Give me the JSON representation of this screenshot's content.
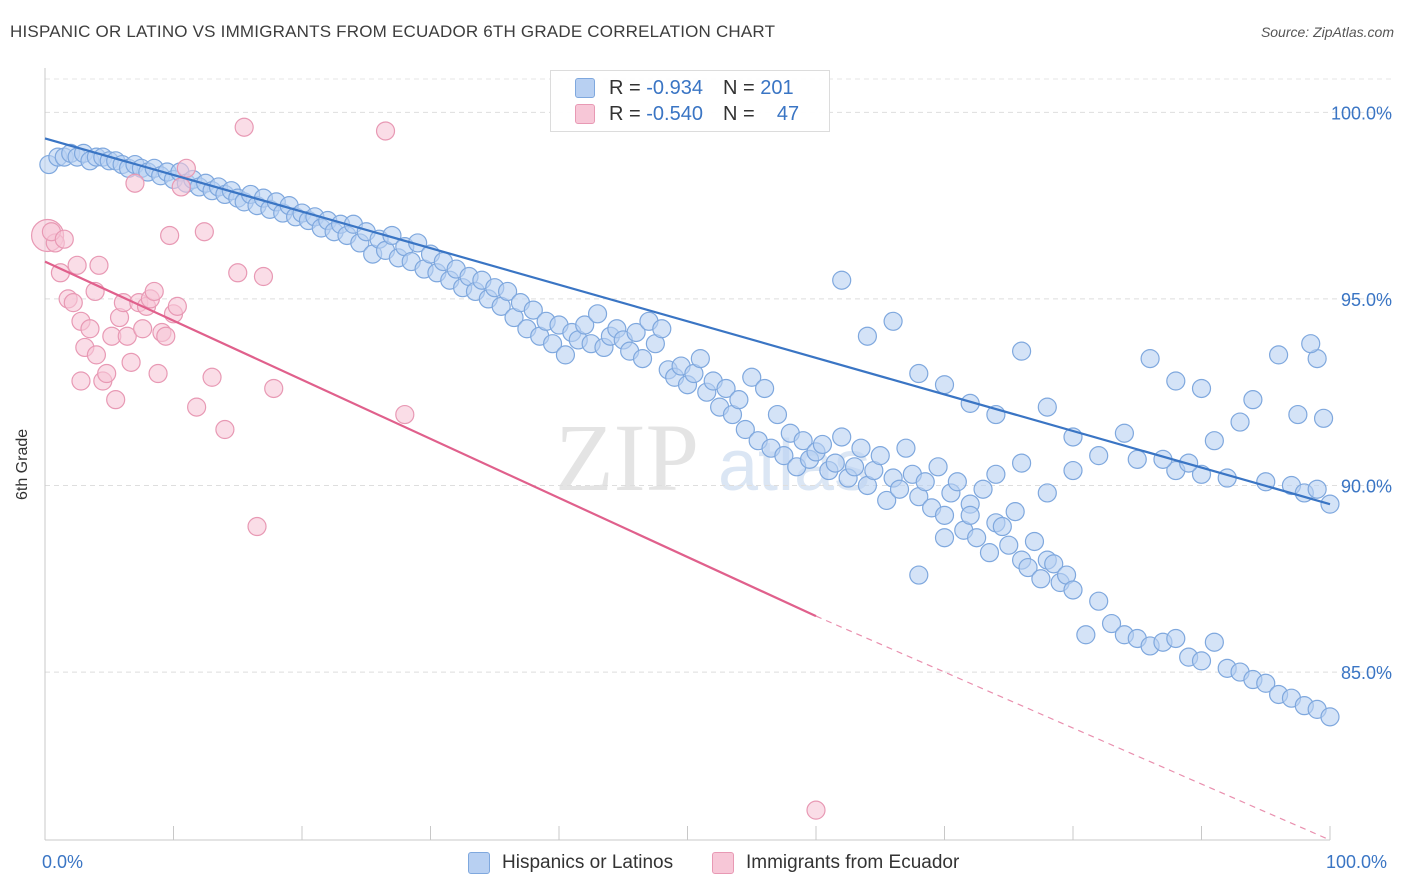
{
  "header": {
    "title": "HISPANIC OR LATINO VS IMMIGRANTS FROM ECUADOR 6TH GRADE CORRELATION CHART",
    "source": "Source: ZipAtlas.com"
  },
  "watermark": {
    "zip": "ZIP",
    "atlas": "atlas"
  },
  "legend": {
    "r_label": "R =",
    "n_label": "N =",
    "rows": [
      {
        "r": "-0.934",
        "n": "201"
      },
      {
        "r": "-0.540",
        "n": "47"
      }
    ]
  },
  "chart_data": {
    "type": "scatter",
    "title": "HISPANIC OR LATINO VS IMMIGRANTS FROM ECUADOR 6TH GRADE CORRELATION CHART",
    "ylabel": "6th Grade",
    "xlabel": "",
    "xlim": [
      0,
      100
    ],
    "ylim": [
      80.5,
      101.0
    ],
    "x_tick_labels": [
      "0.0%",
      "100.0%"
    ],
    "y_ticks": [
      {
        "value": 100,
        "label": "100.0%"
      },
      {
        "value": 95,
        "label": "95.0%"
      },
      {
        "value": 90,
        "label": "90.0%"
      },
      {
        "value": 85,
        "label": "85.0%"
      }
    ],
    "grid": "horizontal dashed",
    "legend_position": "top-center and bottom",
    "series": [
      {
        "name": "Hispanics or Latinos",
        "color": "#7fa8de",
        "fill": "#b8d0f2",
        "line_color": "#3a75c4",
        "R": -0.934,
        "N": 201,
        "trend": {
          "x": [
            0,
            100
          ],
          "y": [
            99.3,
            89.5
          ]
        },
        "points": [
          [
            0.3,
            98.6
          ],
          [
            1.0,
            98.8
          ],
          [
            1.5,
            98.8
          ],
          [
            2.0,
            98.9
          ],
          [
            2.5,
            98.8
          ],
          [
            3.0,
            98.9
          ],
          [
            3.5,
            98.7
          ],
          [
            4.0,
            98.8
          ],
          [
            4.5,
            98.8
          ],
          [
            5.0,
            98.7
          ],
          [
            5.5,
            98.7
          ],
          [
            6.0,
            98.6
          ],
          [
            6.5,
            98.5
          ],
          [
            7.0,
            98.6
          ],
          [
            7.5,
            98.5
          ],
          [
            8.0,
            98.4
          ],
          [
            8.5,
            98.5
          ],
          [
            9.0,
            98.3
          ],
          [
            9.5,
            98.4
          ],
          [
            10.0,
            98.2
          ],
          [
            10.5,
            98.4
          ],
          [
            11.0,
            98.1
          ],
          [
            11.5,
            98.2
          ],
          [
            12.0,
            98.0
          ],
          [
            12.5,
            98.1
          ],
          [
            13.0,
            97.9
          ],
          [
            13.5,
            98.0
          ],
          [
            14.0,
            97.8
          ],
          [
            14.5,
            97.9
          ],
          [
            15.0,
            97.7
          ],
          [
            15.5,
            97.6
          ],
          [
            16.0,
            97.8
          ],
          [
            16.5,
            97.5
          ],
          [
            17.0,
            97.7
          ],
          [
            17.5,
            97.4
          ],
          [
            18.0,
            97.6
          ],
          [
            18.5,
            97.3
          ],
          [
            19.0,
            97.5
          ],
          [
            19.5,
            97.2
          ],
          [
            20.0,
            97.3
          ],
          [
            20.5,
            97.1
          ],
          [
            21.0,
            97.2
          ],
          [
            21.5,
            96.9
          ],
          [
            22.0,
            97.1
          ],
          [
            22.5,
            96.8
          ],
          [
            23.0,
            97.0
          ],
          [
            23.5,
            96.7
          ],
          [
            24.0,
            97.0
          ],
          [
            24.5,
            96.5
          ],
          [
            25.0,
            96.8
          ],
          [
            25.5,
            96.2
          ],
          [
            26.0,
            96.6
          ],
          [
            26.5,
            96.3
          ],
          [
            27.0,
            96.7
          ],
          [
            27.5,
            96.1
          ],
          [
            28.0,
            96.4
          ],
          [
            28.5,
            96.0
          ],
          [
            29.0,
            96.5
          ],
          [
            29.5,
            95.8
          ],
          [
            30.0,
            96.2
          ],
          [
            30.5,
            95.7
          ],
          [
            31.0,
            96.0
          ],
          [
            31.5,
            95.5
          ],
          [
            32.0,
            95.8
          ],
          [
            32.5,
            95.3
          ],
          [
            33.0,
            95.6
          ],
          [
            33.5,
            95.2
          ],
          [
            34.0,
            95.5
          ],
          [
            34.5,
            95.0
          ],
          [
            35.0,
            95.3
          ],
          [
            35.5,
            94.8
          ],
          [
            36.0,
            95.2
          ],
          [
            36.5,
            94.5
          ],
          [
            37.0,
            94.9
          ],
          [
            37.5,
            94.2
          ],
          [
            38.0,
            94.7
          ],
          [
            38.5,
            94.0
          ],
          [
            39.0,
            94.4
          ],
          [
            39.5,
            93.8
          ],
          [
            40.0,
            94.3
          ],
          [
            40.5,
            93.5
          ],
          [
            41.0,
            94.1
          ],
          [
            41.5,
            93.9
          ],
          [
            42.0,
            94.3
          ],
          [
            42.5,
            93.8
          ],
          [
            43.0,
            94.6
          ],
          [
            43.5,
            93.7
          ],
          [
            44.0,
            94.0
          ],
          [
            44.5,
            94.2
          ],
          [
            45.0,
            93.9
          ],
          [
            45.5,
            93.6
          ],
          [
            46.0,
            94.1
          ],
          [
            46.5,
            93.4
          ],
          [
            47.0,
            94.4
          ],
          [
            47.5,
            93.8
          ],
          [
            48.0,
            94.2
          ],
          [
            48.5,
            93.1
          ],
          [
            49.0,
            92.9
          ],
          [
            49.5,
            93.2
          ],
          [
            50.0,
            92.7
          ],
          [
            50.5,
            93.0
          ],
          [
            51.0,
            93.4
          ],
          [
            51.5,
            92.5
          ],
          [
            52.0,
            92.8
          ],
          [
            52.5,
            92.1
          ],
          [
            53.0,
            92.6
          ],
          [
            53.5,
            91.9
          ],
          [
            54.0,
            92.3
          ],
          [
            54.5,
            91.5
          ],
          [
            55.0,
            92.9
          ],
          [
            55.5,
            91.2
          ],
          [
            56.0,
            92.6
          ],
          [
            56.5,
            91.0
          ],
          [
            57.0,
            91.9
          ],
          [
            57.5,
            90.8
          ],
          [
            58.0,
            91.4
          ],
          [
            58.5,
            90.5
          ],
          [
            59.0,
            91.2
          ],
          [
            59.5,
            90.7
          ],
          [
            60.0,
            90.9
          ],
          [
            60.5,
            91.1
          ],
          [
            61.0,
            90.4
          ],
          [
            61.5,
            90.6
          ],
          [
            62.0,
            91.3
          ],
          [
            62.5,
            90.2
          ],
          [
            63.0,
            90.5
          ],
          [
            63.5,
            91.0
          ],
          [
            64.0,
            90.0
          ],
          [
            64.5,
            90.4
          ],
          [
            65.0,
            90.8
          ],
          [
            65.5,
            89.6
          ],
          [
            66.0,
            90.2
          ],
          [
            66.5,
            89.9
          ],
          [
            67.0,
            91.0
          ],
          [
            67.5,
            90.3
          ],
          [
            68.0,
            89.7
          ],
          [
            68.5,
            90.1
          ],
          [
            69.0,
            89.4
          ],
          [
            69.5,
            90.5
          ],
          [
            70.0,
            89.2
          ],
          [
            70.5,
            89.8
          ],
          [
            71.0,
            90.1
          ],
          [
            71.5,
            88.8
          ],
          [
            72.0,
            89.5
          ],
          [
            72.5,
            88.6
          ],
          [
            73.0,
            89.9
          ],
          [
            73.5,
            88.2
          ],
          [
            74.0,
            89.0
          ],
          [
            74.5,
            88.9
          ],
          [
            75.0,
            88.4
          ],
          [
            75.5,
            89.3
          ],
          [
            76.0,
            88.0
          ],
          [
            76.5,
            87.8
          ],
          [
            77.0,
            88.5
          ],
          [
            77.5,
            87.5
          ],
          [
            78.0,
            88.0
          ],
          [
            78.5,
            87.9
          ],
          [
            79.0,
            87.4
          ],
          [
            79.5,
            87.6
          ],
          [
            80.0,
            87.2
          ],
          [
            81.0,
            86.0
          ],
          [
            82.0,
            86.9
          ],
          [
            83.0,
            86.3
          ],
          [
            84.0,
            86.0
          ],
          [
            85.0,
            85.9
          ],
          [
            86.0,
            85.7
          ],
          [
            87.0,
            85.8
          ],
          [
            88.0,
            85.9
          ],
          [
            89.0,
            85.4
          ],
          [
            90.0,
            85.3
          ],
          [
            91.0,
            85.8
          ],
          [
            92.0,
            85.1
          ],
          [
            93.0,
            85.0
          ],
          [
            94.0,
            84.8
          ],
          [
            95.0,
            84.7
          ],
          [
            96.0,
            84.4
          ],
          [
            97.0,
            84.3
          ],
          [
            98.0,
            84.1
          ],
          [
            99.0,
            84.0
          ],
          [
            100.0,
            83.8
          ],
          [
            62.0,
            95.5
          ],
          [
            64.0,
            94.0
          ],
          [
            66.0,
            94.4
          ],
          [
            68.0,
            93.0
          ],
          [
            70.0,
            92.7
          ],
          [
            72.0,
            92.2
          ],
          [
            74.0,
            91.9
          ],
          [
            76.0,
            93.6
          ],
          [
            78.0,
            92.1
          ],
          [
            80.0,
            91.3
          ],
          [
            85.0,
            90.7
          ],
          [
            88.0,
            90.4
          ],
          [
            90.0,
            90.3
          ],
          [
            92.0,
            90.2
          ],
          [
            95.0,
            90.1
          ],
          [
            97.0,
            90.0
          ],
          [
            98.0,
            89.8
          ],
          [
            99.0,
            89.9
          ],
          [
            100.0,
            89.5
          ],
          [
            86.0,
            93.4
          ],
          [
            88.0,
            92.8
          ],
          [
            90.0,
            92.6
          ],
          [
            94.0,
            92.3
          ],
          [
            96.0,
            93.5
          ],
          [
            99.0,
            93.4
          ],
          [
            98.5,
            93.8
          ],
          [
            99.5,
            91.8
          ],
          [
            97.5,
            91.9
          ],
          [
            93.0,
            91.7
          ],
          [
            91.0,
            91.2
          ],
          [
            89.0,
            90.6
          ],
          [
            87.0,
            90.7
          ],
          [
            84.0,
            91.4
          ],
          [
            82.0,
            90.8
          ],
          [
            80.0,
            90.4
          ],
          [
            78.0,
            89.8
          ],
          [
            76.0,
            90.6
          ],
          [
            74.0,
            90.3
          ],
          [
            72.0,
            89.2
          ],
          [
            70.0,
            88.6
          ],
          [
            68.0,
            87.6
          ]
        ]
      },
      {
        "name": "Immigrants from Ecuador",
        "color": "#e899b4",
        "fill": "#f7c7d7",
        "line_color": "#e0608c",
        "R": -0.54,
        "N": 47,
        "trend": {
          "x": [
            0,
            60
          ],
          "y": [
            96.0,
            86.5
          ]
        },
        "trend_dashed": {
          "x": [
            60,
            100
          ],
          "y": [
            86.5,
            80.5
          ]
        },
        "points": [
          [
            0.2,
            96.7
          ],
          [
            0.8,
            96.5
          ],
          [
            1.2,
            95.7
          ],
          [
            1.8,
            95.0
          ],
          [
            2.2,
            94.9
          ],
          [
            2.5,
            95.9
          ],
          [
            2.8,
            94.4
          ],
          [
            3.1,
            93.7
          ],
          [
            3.5,
            94.2
          ],
          [
            3.9,
            95.2
          ],
          [
            4.2,
            95.9
          ],
          [
            4.5,
            92.8
          ],
          [
            4.8,
            93.0
          ],
          [
            5.2,
            94.0
          ],
          [
            5.5,
            92.3
          ],
          [
            5.8,
            94.5
          ],
          [
            6.1,
            94.9
          ],
          [
            6.4,
            94.0
          ],
          [
            6.7,
            93.3
          ],
          [
            7.0,
            98.1
          ],
          [
            7.3,
            94.9
          ],
          [
            7.6,
            94.2
          ],
          [
            7.9,
            94.8
          ],
          [
            8.2,
            95.0
          ],
          [
            8.5,
            95.2
          ],
          [
            8.8,
            93.0
          ],
          [
            9.1,
            94.1
          ],
          [
            9.4,
            94.0
          ],
          [
            9.7,
            96.7
          ],
          [
            10.0,
            94.6
          ],
          [
            10.3,
            94.8
          ],
          [
            10.6,
            98.0
          ],
          [
            11.0,
            98.5
          ],
          [
            11.8,
            92.1
          ],
          [
            12.4,
            96.8
          ],
          [
            13.0,
            92.9
          ],
          [
            14.0,
            91.5
          ],
          [
            15.0,
            95.7
          ],
          [
            15.5,
            99.6
          ],
          [
            16.5,
            88.9
          ],
          [
            17.0,
            95.6
          ],
          [
            17.8,
            92.6
          ],
          [
            26.5,
            99.5
          ],
          [
            28.0,
            91.9
          ],
          [
            60.0,
            81.3
          ],
          [
            0.5,
            96.8
          ],
          [
            1.5,
            96.6
          ],
          [
            2.8,
            92.8
          ],
          [
            4.0,
            93.5
          ]
        ]
      }
    ]
  },
  "bottom_legend": {
    "series1": "Hispanics or Latinos",
    "series2": "Immigrants from Ecuador"
  }
}
